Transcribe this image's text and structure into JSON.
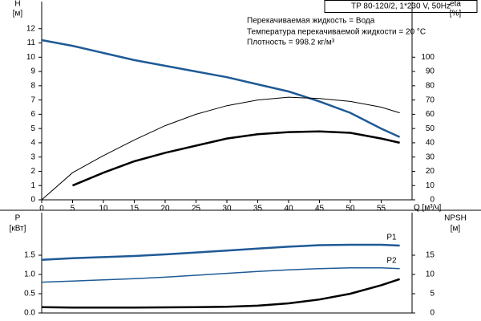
{
  "chart_data": [
    {
      "type": "line",
      "title": "TP 80-120/2, 1*230 V, 50Hz",
      "info": [
        "Перекачиваемая жидкость = Вода",
        "Температура перекачиваемой жидкости = 20 °C",
        "Плотность = 998.2 кг/м³"
      ],
      "ylabel": "H",
      "yunit": "[м]",
      "y2label": "eta",
      "y2unit": "[%]",
      "xlabel": "Q [м³/ч]",
      "x": [
        0,
        5,
        10,
        15,
        20,
        25,
        30,
        35,
        40,
        45,
        50,
        55,
        58
      ],
      "xlim": [
        0,
        60
      ],
      "xticks": [
        0,
        5,
        10,
        15,
        20,
        25,
        30,
        35,
        40,
        45,
        50,
        55
      ],
      "ylim": [
        0,
        13
      ],
      "yticks": [
        0,
        1,
        2,
        3,
        4,
        5,
        6,
        7,
        8,
        9,
        10,
        11,
        12
      ],
      "y2lim": [
        0,
        130
      ],
      "y2ticks": [
        0,
        10,
        20,
        30,
        40,
        50,
        60,
        70,
        80,
        90,
        100
      ],
      "grid": false,
      "series": [
        {
          "color": "#1f5a96",
          "line_width": 2.5,
          "values": [
            11.2,
            10.8,
            10.3,
            9.8,
            9.4,
            9.0,
            8.6,
            8.1,
            7.6,
            6.9,
            6.1,
            5.0,
            4.4
          ]
        },
        {
          "color": "#000000",
          "line_width": 1,
          "axis": "y2",
          "values": [
            0,
            19,
            31,
            42,
            52,
            60,
            66,
            70,
            72,
            71,
            69,
            65,
            61
          ]
        },
        {
          "color": "#000000",
          "line_width": 2.5,
          "axis": "y2",
          "values": [
            null,
            10,
            19,
            27,
            33,
            38,
            43,
            46,
            47.5,
            48,
            47,
            43,
            40
          ]
        }
      ]
    },
    {
      "type": "line",
      "ylabel": "P",
      "yunit": "[кВт]",
      "y2label": "NPSH",
      "y2unit": "[м]",
      "x": [
        0,
        5,
        10,
        15,
        20,
        25,
        30,
        35,
        40,
        45,
        50,
        55,
        58
      ],
      "xlim": [
        0,
        60
      ],
      "ylim": [
        0,
        2.5
      ],
      "yticks": [
        {
          "value": 0,
          "label": "0.0"
        },
        {
          "value": 0.5,
          "label": "0.5"
        },
        {
          "value": 1,
          "label": "1.0"
        },
        {
          "value": 1.5,
          "label": "1.5"
        }
      ],
      "y2lim": [
        0,
        25
      ],
      "y2ticks": [
        0,
        5,
        10,
        15
      ],
      "grid": false,
      "series": [
        {
          "name": "P1",
          "color": "#1f5a96",
          "line_width": 2.5,
          "values": [
            1.38,
            1.42,
            1.45,
            1.48,
            1.52,
            1.57,
            1.62,
            1.67,
            1.72,
            1.76,
            1.77,
            1.77,
            1.75
          ]
        },
        {
          "name": "P2",
          "color": "#1f5a96",
          "line_width": 1.5,
          "values": [
            0.8,
            0.83,
            0.86,
            0.89,
            0.93,
            0.98,
            1.03,
            1.08,
            1.12,
            1.15,
            1.17,
            1.17,
            1.15
          ]
        },
        {
          "color": "#000000",
          "line_width": 2.5,
          "axis": "y2",
          "values": [
            1.5,
            1.4,
            1.4,
            1.4,
            1.45,
            1.5,
            1.6,
            1.9,
            2.5,
            3.5,
            5.0,
            7.2,
            8.8
          ]
        }
      ]
    }
  ]
}
